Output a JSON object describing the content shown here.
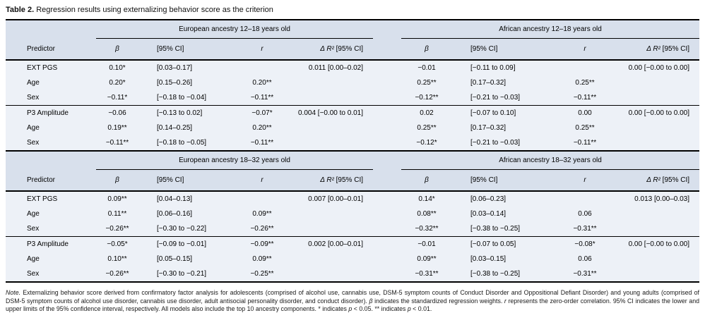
{
  "title": {
    "label": "Table 2.",
    "text": " Regression results using externalizing behavior score as the criterion"
  },
  "headers": {
    "predictor": "Predictor",
    "beta": "β",
    "ci": "[95% CI]",
    "r": "r",
    "dr2_sym": "Δ R²",
    "dr2_ci": " [95% CI]"
  },
  "panel1": {
    "spanner_left": "European ancestry 12–18 years old",
    "spanner_right": "African ancestry 12–18 years old",
    "rows": [
      [
        "EXT PGS",
        "0.10*",
        "[0.03–0.17]",
        "",
        "0.011 [0.00–0.02]",
        "−0.01",
        "[−0.11 to 0.09]",
        "",
        "0.00 [−0.00 to 0.00]"
      ],
      [
        "Age",
        "0.20*",
        "[0.15–0.26]",
        "0.20**",
        "",
        "0.25**",
        "[0.17–0.32]",
        "0.25**",
        ""
      ],
      [
        "Sex",
        "−0.11*",
        "[−0.18 to −0.04]",
        "−0.11**",
        "",
        "−0.12**",
        "[−0.21 to −0.03]",
        "−0.11**",
        ""
      ],
      [
        "P3 Amplitude",
        "−0.06",
        "[−0.13 to 0.02]",
        "−0.07*",
        "0.004 [−0.00 to 0.01]",
        "0.02",
        "[−0.07 to 0.10]",
        "0.00",
        "0.00 [−0.00 to 0.00]"
      ],
      [
        "Age",
        "0.19**",
        "[0.14–0.25]",
        "0.20**",
        "",
        "0.25**",
        "[0.17–0.32]",
        "0.25**",
        ""
      ],
      [
        "Sex",
        "−0.11**",
        "[−0.18 to −0.05]",
        "−0.11**",
        "",
        "−0.12*",
        "[−0.21 to −0.03]",
        "−0.11**",
        ""
      ]
    ]
  },
  "panel2": {
    "spanner_left": "European ancestry 18–32 years old",
    "spanner_right": "African ancestry 18–32 years old",
    "rows": [
      [
        "EXT PGS",
        "0.09**",
        "[0.04–0.13]",
        "",
        "0.007 [0.00–0.01]",
        "0.14*",
        "[0.06–0.23]",
        "",
        "0.013 [0.00–0.03]"
      ],
      [
        "Age",
        "0.11**",
        "[0.06–0.16]",
        "0.09**",
        "",
        "0.08**",
        "[0.03–0.14]",
        "0.06",
        ""
      ],
      [
        "Sex",
        "−0.26**",
        "[−0.30 to −0.22]",
        "−0.26**",
        "",
        "−0.32**",
        "[−0.38 to −0.25]",
        "−0.31**",
        ""
      ],
      [
        "P3 Amplitude",
        "−0.05*",
        "[−0.09 to −0.01]",
        "−0.09**",
        "0.002 [0.00–0.01]",
        "−0.01",
        "[−0.07 to 0.05]",
        "−0.08*",
        "0.00 [−0.00 to 0.00]"
      ],
      [
        "Age",
        "0.10**",
        "[0.05–0.15]",
        "0.09**",
        "",
        "0.09**",
        "[0.03–0.15]",
        "0.06",
        ""
      ],
      [
        "Sex",
        "−0.26**",
        "[−0.30 to −0.21]",
        "−0.25**",
        "",
        "−0.31**",
        "[−0.38 to −0.25]",
        "−0.31**",
        ""
      ]
    ]
  },
  "note": {
    "parts": [
      {
        "t": "Note.",
        "i": true
      },
      {
        "t": " Externalizing behavior score derived from confirmatory factor analysis for adolescents (comprised of alcohol use, cannabis use, DSM-5 symptom counts of Conduct Disorder and Oppositional Defiant Disorder) and young adults (comprised of DSM-5 symptom counts of alcohol use disorder, cannabis use disorder, adult antisocial personality disorder, and conduct disorder). ",
        "i": false
      },
      {
        "t": "β",
        "i": true
      },
      {
        "t": " indicates the standardized regression weights. ",
        "i": false
      },
      {
        "t": "r",
        "i": true
      },
      {
        "t": " represents the zero-order correlation. 95% CI indicates the lower and upper limits of the 95% confidence interval, respectively. All models also include the top 10 ancestry components. * indicates ",
        "i": false
      },
      {
        "t": "p",
        "i": true
      },
      {
        "t": " < 0.05. ** indicates ",
        "i": false
      },
      {
        "t": "p",
        "i": true
      },
      {
        "t": " < 0.01.",
        "i": false
      }
    ]
  }
}
